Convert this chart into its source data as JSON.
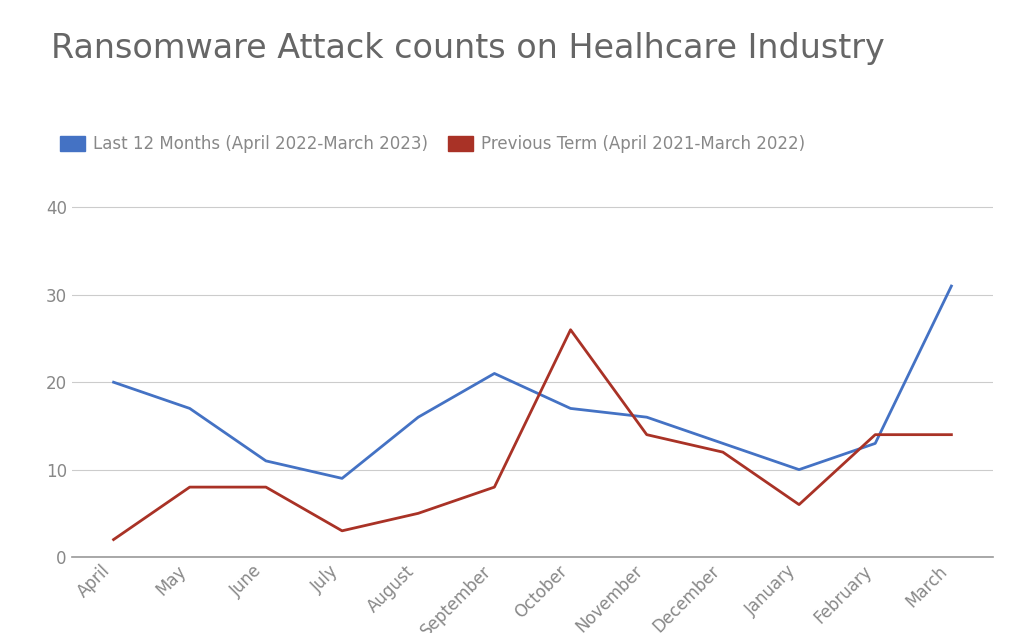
{
  "title": "Ransomware Attack counts on Healhcare Industry",
  "months": [
    "April",
    "May",
    "June",
    "July",
    "August",
    "September",
    "October",
    "November",
    "December",
    "January",
    "February",
    "March"
  ],
  "series": [
    {
      "label": "Last 12 Months (April 2022-March 2023)",
      "color": "#4472C4",
      "values": [
        20,
        17,
        11,
        9,
        16,
        21,
        17,
        16,
        13,
        10,
        13,
        31
      ]
    },
    {
      "label": "Previous Term (April 2021-March 2022)",
      "color": "#A93226",
      "values": [
        2,
        8,
        8,
        3,
        5,
        8,
        26,
        14,
        12,
        6,
        14,
        14
      ]
    }
  ],
  "ylim": [
    0,
    42
  ],
  "yticks": [
    0,
    10,
    20,
    30,
    40
  ],
  "background_color": "#ffffff",
  "title_fontsize": 24,
  "title_color": "#666666",
  "legend_fontsize": 12,
  "tick_fontsize": 12,
  "tick_color": "#888888",
  "grid_color": "#cccccc",
  "line_width": 2.0
}
